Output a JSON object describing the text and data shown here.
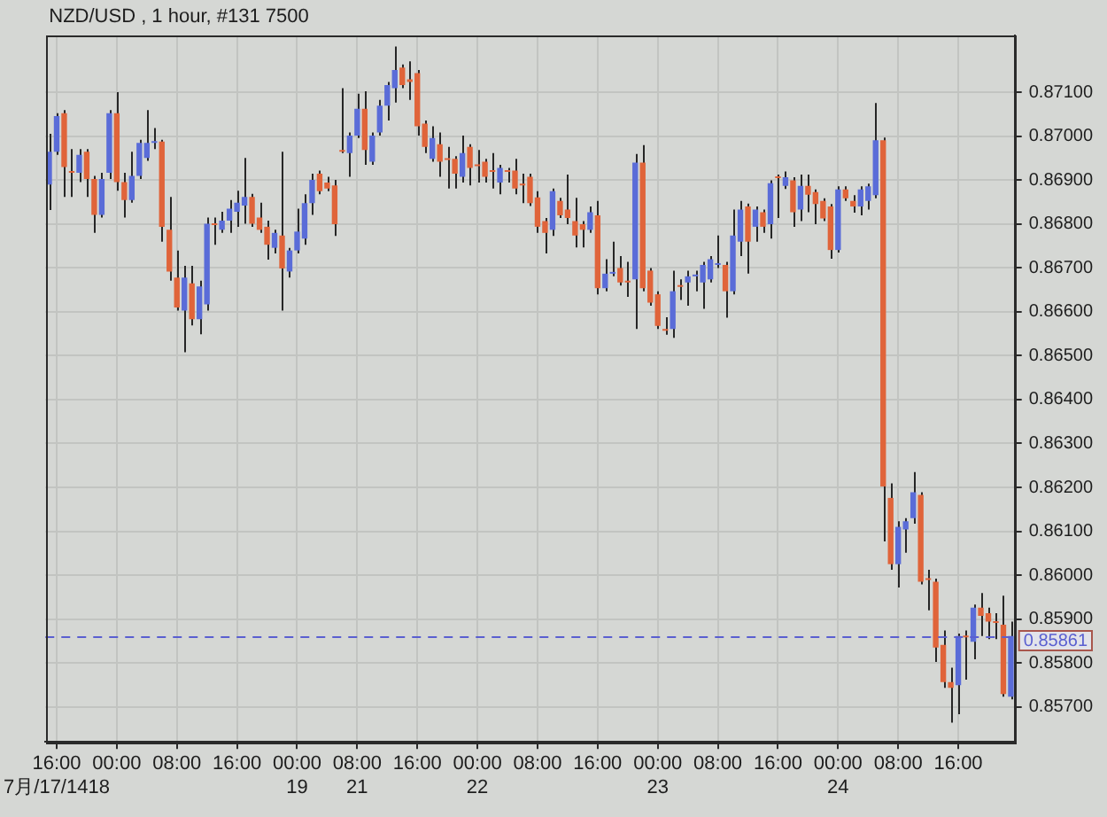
{
  "chart_data": {
    "type": "candlestick",
    "title": "NZD/USD , 1 hour, #131 7500",
    "categories": [
      null,
      "16:00\n7月/17/1418",
      null,
      null,
      null,
      null,
      null,
      null,
      null,
      "00:00",
      null,
      null,
      null,
      null,
      null,
      null,
      null,
      "08:00",
      null,
      null,
      null,
      null,
      null,
      null,
      null,
      "16:00",
      null,
      null,
      null,
      null,
      null,
      null,
      null,
      "00:00\n19",
      null,
      null,
      null,
      null,
      null,
      null,
      null,
      "08:00\n21",
      null,
      null,
      null,
      null,
      null,
      null,
      null,
      "16:00",
      null,
      null,
      null,
      null,
      null,
      null,
      null,
      "00:00\n22",
      null,
      null,
      null,
      null,
      null,
      null,
      null,
      "08:00",
      null,
      null,
      null,
      null,
      null,
      null,
      null,
      "16:00",
      null,
      null,
      null,
      null,
      null,
      null,
      null,
      "00:00\n23",
      null,
      null,
      null,
      null,
      null,
      null,
      null,
      "08:00",
      null,
      null,
      null,
      null,
      null,
      null,
      null,
      "16:00",
      null,
      null,
      null,
      null,
      null,
      null,
      null,
      "00:00\n24",
      null,
      null,
      null,
      null,
      null,
      null,
      null,
      "08:00",
      null,
      null,
      null,
      null,
      null,
      null,
      null,
      "16:00",
      null,
      null,
      null,
      null,
      null,
      null,
      null
    ],
    "ohlc": [
      [
        0.8689,
        0.87006,
        0.86832,
        0.86965
      ],
      [
        0.86965,
        0.87053,
        0.86958,
        0.87046
      ],
      [
        0.87053,
        0.8706,
        0.86862,
        0.8693
      ],
      [
        0.8692,
        0.86971,
        0.86862,
        0.86917
      ],
      [
        0.86917,
        0.86971,
        0.86896,
        0.86958
      ],
      [
        0.86965,
        0.86971,
        0.86862,
        0.86903
      ],
      [
        0.86903,
        0.8691,
        0.8678,
        0.86821
      ],
      [
        0.86821,
        0.86917,
        0.86815,
        0.86903
      ],
      [
        0.86917,
        0.8706,
        0.86903,
        0.87053
      ],
      [
        0.87053,
        0.87101,
        0.86876,
        0.86896
      ],
      [
        0.86896,
        0.86917,
        0.86815,
        0.86855
      ],
      [
        0.86855,
        0.86965,
        0.86849,
        0.8691
      ],
      [
        0.8691,
        0.86992,
        0.86903,
        0.86985
      ],
      [
        0.86951,
        0.8706,
        0.86944,
        0.86985
      ],
      [
        0.86985,
        0.87019,
        0.86971,
        0.86988
      ],
      [
        0.86988,
        0.86992,
        0.8676,
        0.86794
      ],
      [
        0.86787,
        0.86862,
        0.86671,
        0.86692
      ],
      [
        0.86678,
        0.8674,
        0.86603,
        0.8661
      ],
      [
        0.86603,
        0.86705,
        0.86508,
        0.86678
      ],
      [
        0.86665,
        0.86705,
        0.86569,
        0.86583
      ],
      [
        0.86583,
        0.86671,
        0.86549,
        0.86658
      ],
      [
        0.86617,
        0.86815,
        0.86603,
        0.86801
      ],
      [
        0.86801,
        0.86815,
        0.86753,
        0.86798
      ],
      [
        0.86787,
        0.86828,
        0.8678,
        0.86808
      ],
      [
        0.86808,
        0.86855,
        0.8678,
        0.86835
      ],
      [
        0.86828,
        0.86876,
        0.86794,
        0.86849
      ],
      [
        0.86842,
        0.86951,
        0.86801,
        0.86862
      ],
      [
        0.86862,
        0.86869,
        0.86794,
        0.86801
      ],
      [
        0.86815,
        0.86849,
        0.8678,
        0.86787
      ],
      [
        0.86794,
        0.86808,
        0.86719,
        0.86753
      ],
      [
        0.86746,
        0.86787,
        0.86733,
        0.8678
      ],
      [
        0.86774,
        0.86965,
        0.86603,
        0.86699
      ],
      [
        0.86692,
        0.86746,
        0.86678,
        0.8674
      ],
      [
        0.8674,
        0.86835,
        0.86733,
        0.86783
      ],
      [
        0.86767,
        0.86868,
        0.86753,
        0.86848
      ],
      [
        0.86848,
        0.86915,
        0.86821,
        0.86901
      ],
      [
        0.86915,
        0.86922,
        0.86868,
        0.86875
      ],
      [
        0.86895,
        0.86908,
        0.86875,
        0.86881
      ],
      [
        0.86888,
        0.86901,
        0.86773,
        0.868
      ],
      [
        0.86969,
        0.8711,
        0.86962,
        0.86965
      ],
      [
        0.86962,
        0.87009,
        0.86908,
        0.87002
      ],
      [
        0.87002,
        0.87097,
        0.86996,
        0.87063
      ],
      [
        0.87063,
        0.87103,
        0.86935,
        0.86969
      ],
      [
        0.86942,
        0.87009,
        0.86935,
        0.87002
      ],
      [
        0.87009,
        0.87083,
        0.87002,
        0.8707
      ],
      [
        0.8707,
        0.87124,
        0.87036,
        0.87117
      ],
      [
        0.8711,
        0.87205,
        0.87077,
        0.87151
      ],
      [
        0.87157,
        0.87164,
        0.8711,
        0.87117
      ],
      [
        0.8713,
        0.87171,
        0.87083,
        0.87124
      ],
      [
        0.87144,
        0.87151,
        0.87002,
        0.87023
      ],
      [
        0.87029,
        0.87036,
        0.86962,
        0.86976
      ],
      [
        0.86949,
        0.87023,
        0.86942,
        0.86996
      ],
      [
        0.86982,
        0.87009,
        0.86908,
        0.86942
      ],
      [
        0.86949,
        0.86976,
        0.86881,
        0.86946
      ],
      [
        0.86949,
        0.86955,
        0.86881,
        0.86915
      ],
      [
        0.86908,
        0.87002,
        0.86895,
        0.86962
      ],
      [
        0.86976,
        0.86982,
        0.86888,
        0.86928
      ],
      [
        0.86935,
        0.86969,
        0.86895,
        0.86932
      ],
      [
        0.86942,
        0.86949,
        0.86895,
        0.86908
      ],
      [
        0.86922,
        0.86962,
        0.86881,
        0.86919
      ],
      [
        0.86895,
        0.86935,
        0.86868,
        0.86928
      ],
      [
        0.86922,
        0.86928,
        0.86895,
        0.86919
      ],
      [
        0.86922,
        0.86949,
        0.86868,
        0.86881
      ],
      [
        0.8689,
        0.86915,
        0.86848,
        0.86888
      ],
      [
        0.86908,
        0.86915,
        0.86841,
        0.86848
      ],
      [
        0.86861,
        0.86875,
        0.8678,
        0.86794
      ],
      [
        0.86807,
        0.86814,
        0.86733,
        0.8678
      ],
      [
        0.86787,
        0.86881,
        0.86773,
        0.86875
      ],
      [
        0.86853,
        0.8686,
        0.86814,
        0.8682
      ],
      [
        0.86833,
        0.86913,
        0.868,
        0.86814
      ],
      [
        0.86807,
        0.8686,
        0.86747,
        0.86774
      ],
      [
        0.868,
        0.86807,
        0.86747,
        0.86787
      ],
      [
        0.86787,
        0.8684,
        0.8678,
        0.86827
      ],
      [
        0.8682,
        0.86853,
        0.8664,
        0.86654
      ],
      [
        0.86654,
        0.8672,
        0.86647,
        0.86687
      ],
      [
        0.86687,
        0.8676,
        0.86681,
        0.8669
      ],
      [
        0.867,
        0.86727,
        0.8666,
        0.86667
      ],
      [
        0.8667,
        0.86714,
        0.86634,
        0.86667
      ],
      [
        0.86674,
        0.8696,
        0.86561,
        0.8694
      ],
      [
        0.8694,
        0.8698,
        0.86647,
        0.86654
      ],
      [
        0.86694,
        0.867,
        0.86614,
        0.86621
      ],
      [
        0.8664,
        0.86647,
        0.86561,
        0.86568
      ],
      [
        0.8656,
        0.86588,
        0.86548,
        0.86557
      ],
      [
        0.86561,
        0.86694,
        0.86541,
        0.86647
      ],
      [
        0.8666,
        0.86674,
        0.86627,
        0.86657
      ],
      [
        0.86667,
        0.86694,
        0.86614,
        0.86681
      ],
      [
        0.86681,
        0.86694,
        0.86647,
        0.86684
      ],
      [
        0.86667,
        0.86714,
        0.86607,
        0.86707
      ],
      [
        0.86674,
        0.86727,
        0.86667,
        0.8672
      ],
      [
        0.86707,
        0.86774,
        0.867,
        0.8671
      ],
      [
        0.86707,
        0.86714,
        0.86587,
        0.86647
      ],
      [
        0.86647,
        0.86833,
        0.8664,
        0.86774
      ],
      [
        0.8676,
        0.86853,
        0.86727,
        0.86833
      ],
      [
        0.8684,
        0.86847,
        0.86687,
        0.8676
      ],
      [
        0.86794,
        0.8684,
        0.8676,
        0.86833
      ],
      [
        0.86827,
        0.86833,
        0.8678,
        0.86794
      ],
      [
        0.868,
        0.869,
        0.86767,
        0.86893
      ],
      [
        0.86907,
        0.86913,
        0.86814,
        0.86905
      ],
      [
        0.86887,
        0.8692,
        0.8688,
        0.86907
      ],
      [
        0.869,
        0.86907,
        0.86794,
        0.86827
      ],
      [
        0.86833,
        0.86913,
        0.86807,
        0.86887
      ],
      [
        0.86887,
        0.86913,
        0.86827,
        0.86867
      ],
      [
        0.86873,
        0.86879,
        0.868,
        0.86846
      ],
      [
        0.86853,
        0.86859,
        0.86807,
        0.86813
      ],
      [
        0.8684,
        0.86846,
        0.86721,
        0.86741
      ],
      [
        0.86741,
        0.86886,
        0.86735,
        0.86879
      ],
      [
        0.86879,
        0.86886,
        0.86853,
        0.86859
      ],
      [
        0.86853,
        0.86866,
        0.86826,
        0.8684
      ],
      [
        0.8684,
        0.86886,
        0.8682,
        0.86879
      ],
      [
        0.86853,
        0.86892,
        0.86833,
        0.86886
      ],
      [
        0.86866,
        0.87076,
        0.86859,
        0.86991
      ],
      [
        0.86991,
        0.86997,
        0.86077,
        0.86202
      ],
      [
        0.86176,
        0.86209,
        0.86012,
        0.86025
      ],
      [
        0.86025,
        0.86123,
        0.85972,
        0.8611
      ],
      [
        0.86104,
        0.8613,
        0.86051,
        0.86123
      ],
      [
        0.8613,
        0.86235,
        0.86117,
        0.86189
      ],
      [
        0.86183,
        0.86189,
        0.85979,
        0.85985
      ],
      [
        0.85992,
        0.86012,
        0.8592,
        0.85989
      ],
      [
        0.85985,
        0.85992,
        0.85802,
        0.85835
      ],
      [
        0.85841,
        0.85874,
        0.85743,
        0.85756
      ],
      [
        0.85756,
        0.85789,
        0.85664,
        0.85743
      ],
      [
        0.85749,
        0.85867,
        0.85683,
        0.85861
      ],
      [
        0.85861,
        0.85874,
        0.85762,
        0.85858
      ],
      [
        0.85848,
        0.85933,
        0.85808,
        0.85926
      ],
      [
        0.85926,
        0.85959,
        0.85861,
        0.85907
      ],
      [
        0.85913,
        0.85926,
        0.85854,
        0.85894
      ],
      [
        0.85894,
        0.85913,
        0.85854,
        0.85891
      ],
      [
        0.85887,
        0.85953,
        0.85723,
        0.85729
      ],
      [
        0.85723,
        0.85894,
        0.85717,
        0.85861
      ]
    ],
    "colors": [
      "#5a6cd8",
      "#5a6cd8",
      "#e0643a",
      "#e0643a",
      "#5a6cd8",
      "#e0643a",
      "#e0643a",
      "#5a6cd8",
      "#5a6cd8",
      "#e0643a",
      "#e0643a",
      "#5a6cd8",
      "#5a6cd8",
      "#5a6cd8",
      "#5a6cd8",
      "#e0643a",
      "#e0643a",
      "#e0643a",
      "#5a6cd8",
      "#e0643a",
      "#5a6cd8",
      "#5a6cd8",
      "#e0643a",
      "#5a6cd8",
      "#5a6cd8",
      "#5a6cd8",
      "#5a6cd8",
      "#e0643a",
      "#e0643a",
      "#e0643a",
      "#5a6cd8",
      "#e0643a",
      "#5a6cd8",
      "#5a6cd8",
      "#5a6cd8",
      "#5a6cd8",
      "#e0643a",
      "#e0643a",
      "#e0643a",
      "#e0643a",
      "#5a6cd8",
      "#5a6cd8",
      "#e0643a",
      "#5a6cd8",
      "#5a6cd8",
      "#5a6cd8",
      "#5a6cd8",
      "#e0643a",
      "#e0643a",
      "#e0643a",
      "#e0643a",
      "#5a6cd8",
      "#e0643a",
      "#e0643a",
      "#e0643a",
      "#5a6cd8",
      "#e0643a",
      "#e0643a",
      "#e0643a",
      "#e0643a",
      "#5a6cd8",
      "#e0643a",
      "#e0643a",
      "#e0643a",
      "#e0643a",
      "#e0643a",
      "#e0643a",
      "#5a6cd8",
      "#e0643a",
      "#e0643a",
      "#e0643a",
      "#e0643a",
      "#5a6cd8",
      "#e0643a",
      "#5a6cd8",
      "#5a6cd8",
      "#e0643a",
      "#e0643a",
      "#5a6cd8",
      "#e0643a",
      "#e0643a",
      "#e0643a",
      "#e0643a",
      "#5a6cd8",
      "#e0643a",
      "#5a6cd8",
      "#5a6cd8",
      "#5a6cd8",
      "#5a6cd8",
      "#5a6cd8",
      "#e0643a",
      "#5a6cd8",
      "#5a6cd8",
      "#e0643a",
      "#5a6cd8",
      "#e0643a",
      "#5a6cd8",
      "#e0643a",
      "#5a6cd8",
      "#e0643a",
      "#5a6cd8",
      "#e0643a",
      "#e0643a",
      "#e0643a",
      "#e0643a",
      "#5a6cd8",
      "#e0643a",
      "#e0643a",
      "#5a6cd8",
      "#5a6cd8",
      "#5a6cd8",
      "#e0643a",
      "#e0643a",
      "#5a6cd8",
      "#5a6cd8",
      "#5a6cd8",
      "#e0643a",
      "#e0643a",
      "#e0643a",
      "#e0643a",
      "#e0643a",
      "#5a6cd8",
      "#e0643a",
      "#5a6cd8",
      "#e0643a",
      "#e0643a",
      "#e0643a",
      "#e0643a",
      "#5a6cd8"
    ],
    "ylim": [
      0.8562,
      0.8723
    ],
    "yticks": [
      {
        "value": 0.857,
        "label": "0.85700"
      },
      {
        "value": 0.858,
        "label": "0.85800"
      },
      {
        "value": 0.859,
        "label": "0.85900"
      },
      {
        "value": 0.86,
        "label": "0.86000"
      },
      {
        "value": 0.861,
        "label": "0.86100"
      },
      {
        "value": 0.862,
        "label": "0.86200"
      },
      {
        "value": 0.863,
        "label": "0.86300"
      },
      {
        "value": 0.864,
        "label": "0.86400"
      },
      {
        "value": 0.865,
        "label": "0.86500"
      },
      {
        "value": 0.866,
        "label": "0.86600"
      },
      {
        "value": 0.867,
        "label": "0.86700"
      },
      {
        "value": 0.868,
        "label": "0.86800"
      },
      {
        "value": 0.869,
        "label": "0.86900"
      },
      {
        "value": 0.87,
        "label": "0.87000"
      },
      {
        "value": 0.871,
        "label": "0.87100"
      }
    ],
    "ref_lines": [
      {
        "axis": "y",
        "value": 0.85861,
        "label": "0.85861",
        "color": "#5a5fd0",
        "line_style": "dashed"
      }
    ],
    "grid": true
  }
}
